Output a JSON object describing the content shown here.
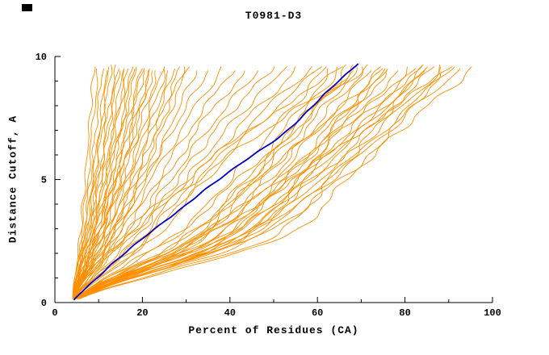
{
  "window": {
    "background": "#ffffff"
  },
  "corner_mark": {
    "color": "#000000"
  },
  "chart_data": {
    "type": "line",
    "title": "T0981-D3",
    "xlabel": "Percent of Residues (CA)",
    "ylabel": "Distance Cutoff, A",
    "xlim": [
      0,
      100
    ],
    "ylim": [
      0,
      10
    ],
    "x_major_ticks": [
      0,
      20,
      40,
      60,
      80,
      100
    ],
    "x_tick_labels": [
      "0",
      "20",
      "40",
      "60",
      "80",
      "100"
    ],
    "x_minor_ticks": [
      10,
      30,
      50,
      70,
      90
    ],
    "y_major_ticks": [
      0,
      5,
      10
    ],
    "y_tick_labels": [
      "0",
      "5",
      "10"
    ],
    "y_minor_ticks": [
      1,
      2,
      3,
      4,
      6,
      7,
      8,
      9
    ],
    "grid": false,
    "legend": "none",
    "colors": {
      "ensemble": "#ff8f00",
      "highlight": "#0000cd",
      "axis": "#000000"
    },
    "anchor_cutoffs": [
      0,
      2.5,
      5,
      7.5,
      10
    ],
    "curve_cutoff_range": [
      0.15,
      9.7
    ],
    "ensemble_series_x": [
      [
        4,
        5.6,
        6.9,
        8.0,
        9
      ],
      [
        4,
        5.9,
        7.5,
        8.8,
        10
      ],
      [
        4,
        6.2,
        8.1,
        9.6,
        11
      ],
      [
        4,
        6.6,
        8.6,
        10.4,
        12
      ],
      [
        4,
        6.7,
        8.9,
        10.8,
        12.5
      ],
      [
        4,
        6.9,
        9.2,
        11.2,
        13
      ],
      [
        4,
        7.2,
        9.8,
        12,
        14
      ],
      [
        4,
        7.4,
        10.1,
        12.4,
        14.5
      ],
      [
        4,
        7.5,
        10.4,
        12.8,
        15
      ],
      [
        4,
        7.8,
        11,
        13.6,
        16
      ],
      [
        4,
        8,
        11.3,
        14,
        16.5
      ],
      [
        4,
        8.2,
        11.5,
        14.4,
        17
      ],
      [
        4,
        8.5,
        12.1,
        15.2,
        18
      ],
      [
        4,
        8.6,
        12.4,
        15.6,
        18.5
      ],
      [
        4,
        8.8,
        12.7,
        16,
        19
      ],
      [
        4,
        9.1,
        13.3,
        16.8,
        20
      ],
      [
        4,
        9.3,
        13.6,
        17.2,
        20.5
      ],
      [
        4,
        9.4,
        13.9,
        17.6,
        21
      ],
      [
        4,
        9.8,
        14.4,
        18.4,
        22
      ],
      [
        4,
        9.9,
        14.7,
        18.8,
        22.5
      ],
      [
        4,
        10.1,
        15,
        19.2,
        23
      ],
      [
        4,
        10.4,
        15.6,
        20,
        24
      ],
      [
        4,
        10.7,
        16.2,
        20.8,
        25
      ],
      [
        4,
        11,
        16.8,
        21.6,
        26
      ],
      [
        4,
        11.4,
        17.3,
        22.4,
        27
      ],
      [
        4,
        11.7,
        17.9,
        23.2,
        28
      ],
      [
        4,
        12,
        18.5,
        24,
        29
      ],
      [
        4,
        12.3,
        19.1,
        24.8,
        30
      ],
      [
        4,
        12.6,
        19.7,
        25.6,
        31
      ],
      [
        4,
        13.3,
        20.8,
        27.2,
        33
      ],
      [
        4,
        13,
        20.5,
        28.5,
        36
      ],
      [
        4,
        14,
        22,
        30.5,
        39
      ],
      [
        4,
        15,
        23.5,
        32.5,
        42
      ],
      [
        4,
        16,
        25,
        34.5,
        45
      ],
      [
        4,
        17,
        26.5,
        37,
        48
      ],
      [
        4,
        18,
        28,
        39,
        51
      ],
      [
        4,
        19,
        30,
        41.5,
        54
      ],
      [
        4,
        20,
        31.5,
        44,
        57
      ],
      [
        4,
        21,
        33,
        46,
        60
      ],
      [
        4,
        22,
        34.5,
        48,
        62
      ],
      [
        4,
        30,
        43.5,
        54.5,
        64
      ],
      [
        4,
        31,
        45,
        56,
        66
      ],
      [
        4,
        32,
        46,
        58,
        68
      ],
      [
        4,
        32.5,
        47.5,
        59.5,
        70
      ],
      [
        4,
        33.5,
        49,
        61,
        72
      ],
      [
        4,
        34.5,
        50,
        62.5,
        74
      ],
      [
        4,
        35.5,
        51.5,
        64.5,
        76
      ],
      [
        4,
        36,
        53,
        66,
        78
      ],
      [
        4,
        37,
        54,
        68,
        80
      ],
      [
        4,
        38,
        55.5,
        69.5,
        82
      ],
      [
        4,
        38.5,
        56.5,
        71.5,
        84
      ],
      [
        4,
        39.5,
        58,
        73,
        86
      ],
      [
        4,
        40.5,
        59.5,
        74.5,
        88
      ],
      [
        4,
        41.5,
        60.5,
        76.5,
        90
      ],
      [
        4,
        42,
        62,
        78,
        92
      ],
      [
        4,
        43,
        63,
        79.5,
        94
      ],
      [
        4,
        44.5,
        65,
        82,
        97
      ],
      [
        4,
        42,
        56,
        66.5,
        75
      ],
      [
        4,
        47.5,
        63,
        75,
        85
      ],
      [
        4,
        50,
        67,
        79.5,
        90
      ],
      [
        4,
        25.5,
        42,
        56.5,
        70
      ],
      [
        4,
        28.5,
        46.5,
        62.5,
        78
      ],
      [
        4,
        31,
        51,
        69,
        86
      ],
      [
        4,
        33,
        54.5,
        74,
        92
      ],
      [
        4,
        14.5,
        30,
        48,
        68
      ],
      [
        4,
        15.5,
        32.5,
        52,
        74
      ],
      [
        4,
        26,
        40,
        52,
        63
      ],
      [
        4,
        29,
        44.5,
        57.5,
        69
      ],
      [
        4,
        36.5,
        52.5,
        65.5,
        77.5
      ],
      [
        4,
        40,
        57.5,
        72,
        87
      ]
    ],
    "highlight_series": {
      "cutoffs": [
        0,
        0.5,
        1,
        1.5,
        2,
        2.5,
        3,
        3.5,
        4,
        4.5,
        5,
        5.5,
        6,
        6.5,
        7,
        7.5,
        8,
        8.5,
        9,
        9.5,
        10
      ],
      "percents": [
        4,
        6.5,
        9.5,
        12.5,
        16,
        19.5,
        23,
        26.5,
        30,
        33.5,
        37.5,
        41.5,
        45.5,
        49.5,
        53,
        56,
        59,
        62,
        65,
        68,
        70.5
      ]
    }
  }
}
